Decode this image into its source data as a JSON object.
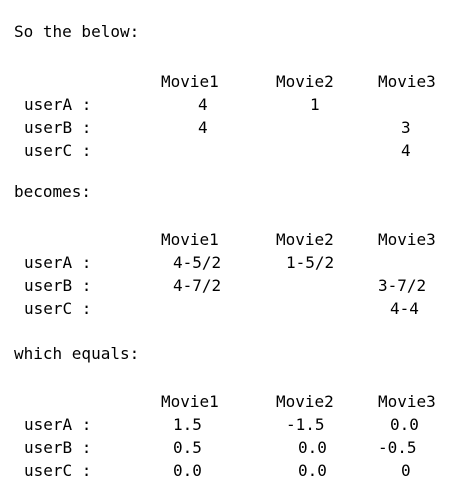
{
  "intro": "So the below:",
  "mid": "becomes:",
  "end": "which equals:",
  "tables": [
    {
      "headers": [
        "Movie1",
        "Movie2",
        "Movie3"
      ],
      "rows": [
        {
          "user": "userA :",
          "cells": [
            "4",
            "1",
            ""
          ]
        },
        {
          "user": "userB :",
          "cells": [
            "4",
            "",
            "3"
          ]
        },
        {
          "user": "userC :",
          "cells": [
            "",
            "",
            "4"
          ]
        }
      ]
    },
    {
      "headers": [
        "Movie1",
        "Movie2",
        "Movie3"
      ],
      "rows": [
        {
          "user": "userA :",
          "cells": [
            "4-5/2",
            "1-5/2",
            ""
          ]
        },
        {
          "user": "userB :",
          "cells": [
            "4-7/2",
            "",
            "3-7/2"
          ]
        },
        {
          "user": "userC :",
          "cells": [
            "",
            "",
            "4-4"
          ]
        }
      ]
    },
    {
      "headers": [
        "Movie1",
        "Movie2",
        "Movie3"
      ],
      "rows": [
        {
          "user": "userA :",
          "cells": [
            "1.5",
            "-1.5",
            "0.0"
          ]
        },
        {
          "user": "userB :",
          "cells": [
            "0.5",
            "0.0",
            "-0.5"
          ]
        },
        {
          "user": "userC :",
          "cells": [
            "0.0",
            "0.0",
            "0"
          ]
        }
      ]
    }
  ]
}
